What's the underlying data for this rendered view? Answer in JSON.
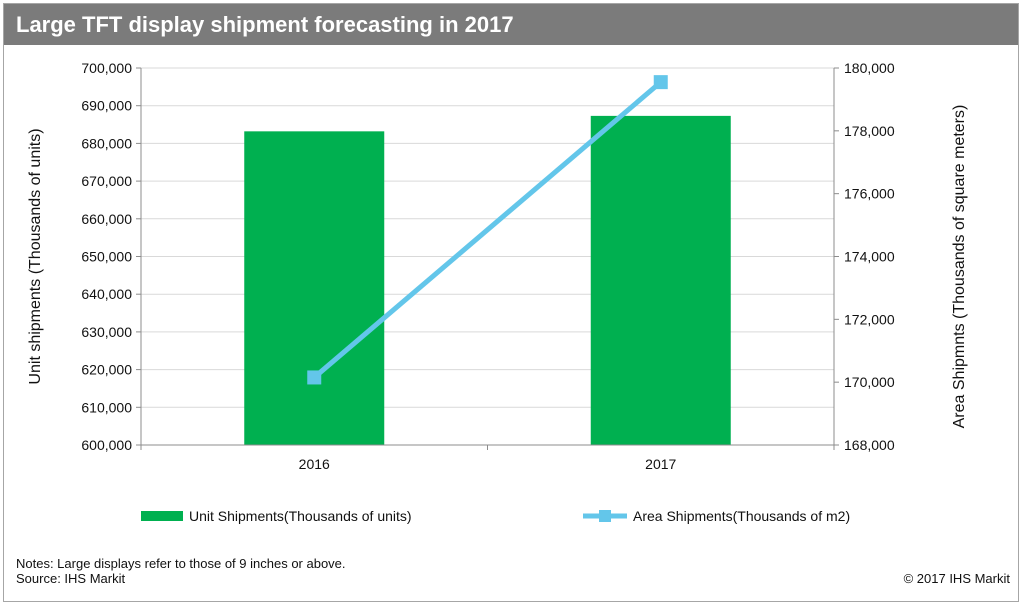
{
  "chart_data": {
    "type": "bar+line",
    "title": "Large TFT display shipment forecasting in 2017",
    "categories": [
      "2016",
      "2017"
    ],
    "series": [
      {
        "name": "Unit Shipments(Thousands of units)",
        "type": "bar",
        "axis": "left",
        "color": "#00b050",
        "values": [
          683200,
          687300
        ]
      },
      {
        "name": "Area Shipments(Thousands of m2)",
        "type": "line",
        "axis": "right",
        "color": "#63c6ea",
        "values": [
          170150,
          179550
        ]
      }
    ],
    "ylabel": "Unit shipments (Thousands of units)",
    "y2label": "Area Shipmnts (Thousands of square meters)",
    "ylim": [
      600000,
      700000
    ],
    "y2lim": [
      168000,
      180000
    ],
    "yticks": [
      "600,000",
      "610,000",
      "620,000",
      "630,000",
      "640,000",
      "650,000",
      "660,000",
      "670,000",
      "680,000",
      "690,000",
      "700,000"
    ],
    "y2ticks": [
      "168,000",
      "170,000",
      "172,000",
      "174,000",
      "176,000",
      "178,000",
      "180,000"
    ],
    "grid": true,
    "legend_position": "bottom"
  },
  "footer": {
    "notes": "Notes: Large displays refer to those of 9 inches or above.",
    "source": "Source: IHS Markit",
    "copyright": "© 2017 IHS Markit"
  }
}
